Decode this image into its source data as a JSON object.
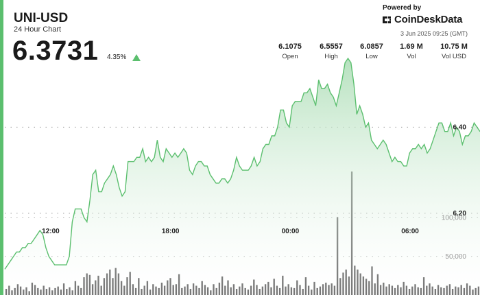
{
  "header": {
    "title": "UNI-USD",
    "subtitle": "24 Hour Chart",
    "price": "6.3731",
    "change": "4.35%"
  },
  "branding": {
    "powered_by": "Powered by",
    "name": "CoinDeskData",
    "timestamp": "3 Jun 2025 09:25 (GMT)"
  },
  "stats": [
    {
      "value": "6.1075",
      "label": "Open"
    },
    {
      "value": "6.5557",
      "label": "High"
    },
    {
      "value": "6.0857",
      "label": "Low"
    },
    {
      "value": "1.69 M",
      "label": "Vol"
    },
    {
      "value": "10.75 M",
      "label": "Vol USD"
    }
  ],
  "colors": {
    "accent": "#5bbf6e",
    "line": "#5bbf6e",
    "area_top": "#a9dcb3",
    "volume_bar": "#5e5e5e"
  },
  "icons": [
    "up-triangle-icon",
    "coindesk-logo-icon"
  ],
  "chart_data": [
    {
      "type": "area",
      "x_ticks": [
        "12:00",
        "18:00",
        "00:00",
        "06:00"
      ],
      "x_tick_hours": [
        12,
        18,
        24,
        30
      ],
      "x_range_hours": [
        9.7,
        33.5
      ],
      "y_ticks": [
        6.4,
        6.2
      ],
      "y_tick_labels": [
        "6.40",
        "6.20"
      ],
      "ylim": [
        6.01,
        6.6
      ],
      "grid": true,
      "price": [
        6.07,
        6.08,
        6.09,
        6.1,
        6.11,
        6.11,
        6.12,
        6.12,
        6.13,
        6.13,
        6.14,
        6.15,
        6.16,
        6.15,
        6.12,
        6.1,
        6.09,
        6.08,
        6.08,
        6.08,
        6.08,
        6.08,
        6.1,
        6.18,
        6.21,
        6.21,
        6.21,
        6.19,
        6.18,
        6.23,
        6.29,
        6.3,
        6.25,
        6.25,
        6.27,
        6.28,
        6.29,
        6.31,
        6.29,
        6.26,
        6.24,
        6.25,
        6.32,
        6.32,
        6.32,
        6.33,
        6.33,
        6.35,
        6.32,
        6.33,
        6.32,
        6.33,
        6.37,
        6.33,
        6.32,
        6.35,
        6.34,
        6.33,
        6.34,
        6.33,
        6.34,
        6.35,
        6.34,
        6.3,
        6.29,
        6.31,
        6.32,
        6.32,
        6.31,
        6.31,
        6.29,
        6.28,
        6.27,
        6.27,
        6.28,
        6.28,
        6.27,
        6.28,
        6.3,
        6.33,
        6.31,
        6.3,
        6.3,
        6.3,
        6.31,
        6.33,
        6.31,
        6.32,
        6.35,
        6.36,
        6.36,
        6.38,
        6.38,
        6.4,
        6.44,
        6.44,
        6.41,
        6.4,
        6.45,
        6.46,
        6.46,
        6.46,
        6.48,
        6.48,
        6.49,
        6.47,
        6.45,
        6.51,
        6.49,
        6.49,
        6.5,
        6.48,
        6.47,
        6.45,
        6.48,
        6.51,
        6.55,
        6.56,
        6.55,
        6.5,
        6.43,
        6.45,
        6.43,
        6.4,
        6.41,
        6.37,
        6.36,
        6.35,
        6.36,
        6.37,
        6.36,
        6.34,
        6.32,
        6.33,
        6.32,
        6.32,
        6.31,
        6.31,
        6.34,
        6.35,
        6.35,
        6.36,
        6.35,
        6.36,
        6.34,
        6.35,
        6.37,
        6.39,
        6.41,
        6.41,
        6.39,
        6.39,
        6.41,
        6.38,
        6.4,
        6.39,
        6.36,
        6.38,
        6.38,
        6.39,
        6.41,
        6.4,
        6.39
      ],
      "volume": [
        8000,
        12000,
        6000,
        9000,
        14000,
        11000,
        7000,
        10000,
        5000,
        16000,
        13000,
        9000,
        7000,
        12000,
        8000,
        10000,
        6000,
        9000,
        11000,
        7000,
        15000,
        8000,
        10000,
        6000,
        18000,
        12000,
        9000,
        23000,
        28000,
        26000,
        14000,
        19000,
        25000,
        12000,
        22000,
        28000,
        33000,
        22000,
        35000,
        28000,
        18000,
        12000,
        23000,
        30000,
        14000,
        9000,
        22000,
        8000,
        12000,
        18000,
        7000,
        14000,
        11000,
        9000,
        16000,
        12000,
        19000,
        22000,
        13000,
        14000,
        27000,
        9000,
        11000,
        14000,
        8000,
        15000,
        12000,
        9000,
        18000,
        13000,
        10000,
        6000,
        14000,
        9000,
        16000,
        24000,
        12000,
        19000,
        10000,
        14000,
        8000,
        11000,
        15000,
        9000,
        7000,
        12000,
        20000,
        13000,
        8000,
        11000,
        14000,
        17000,
        10000,
        21000,
        12000,
        9000,
        25000,
        11000,
        14000,
        10000,
        9000,
        19000,
        13000,
        8000,
        23000,
        12000,
        7000,
        17000,
        9000,
        11000,
        14000,
        16000,
        13000,
        15000,
        12000,
        101000,
        22000,
        29000,
        33000,
        24000,
        160000,
        38000,
        33000,
        28000,
        24000,
        21000,
        18000,
        37000,
        15000,
        27000,
        13000,
        16000,
        11000,
        14000,
        12000,
        9000,
        13000,
        10000,
        17000,
        12000,
        8000,
        11000,
        14000,
        10000,
        9000,
        23000,
        12000,
        15000,
        11000,
        8000,
        13000,
        10000,
        9000,
        12000,
        14000,
        8000,
        11000,
        10000,
        13000,
        9000,
        15000,
        12000,
        7000,
        9000,
        11000
      ],
      "volume_ticks": [
        100000,
        50000
      ],
      "volume_tick_labels": [
        "100,000",
        "50,000"
      ],
      "volume_ylim": [
        0,
        160000
      ]
    }
  ]
}
